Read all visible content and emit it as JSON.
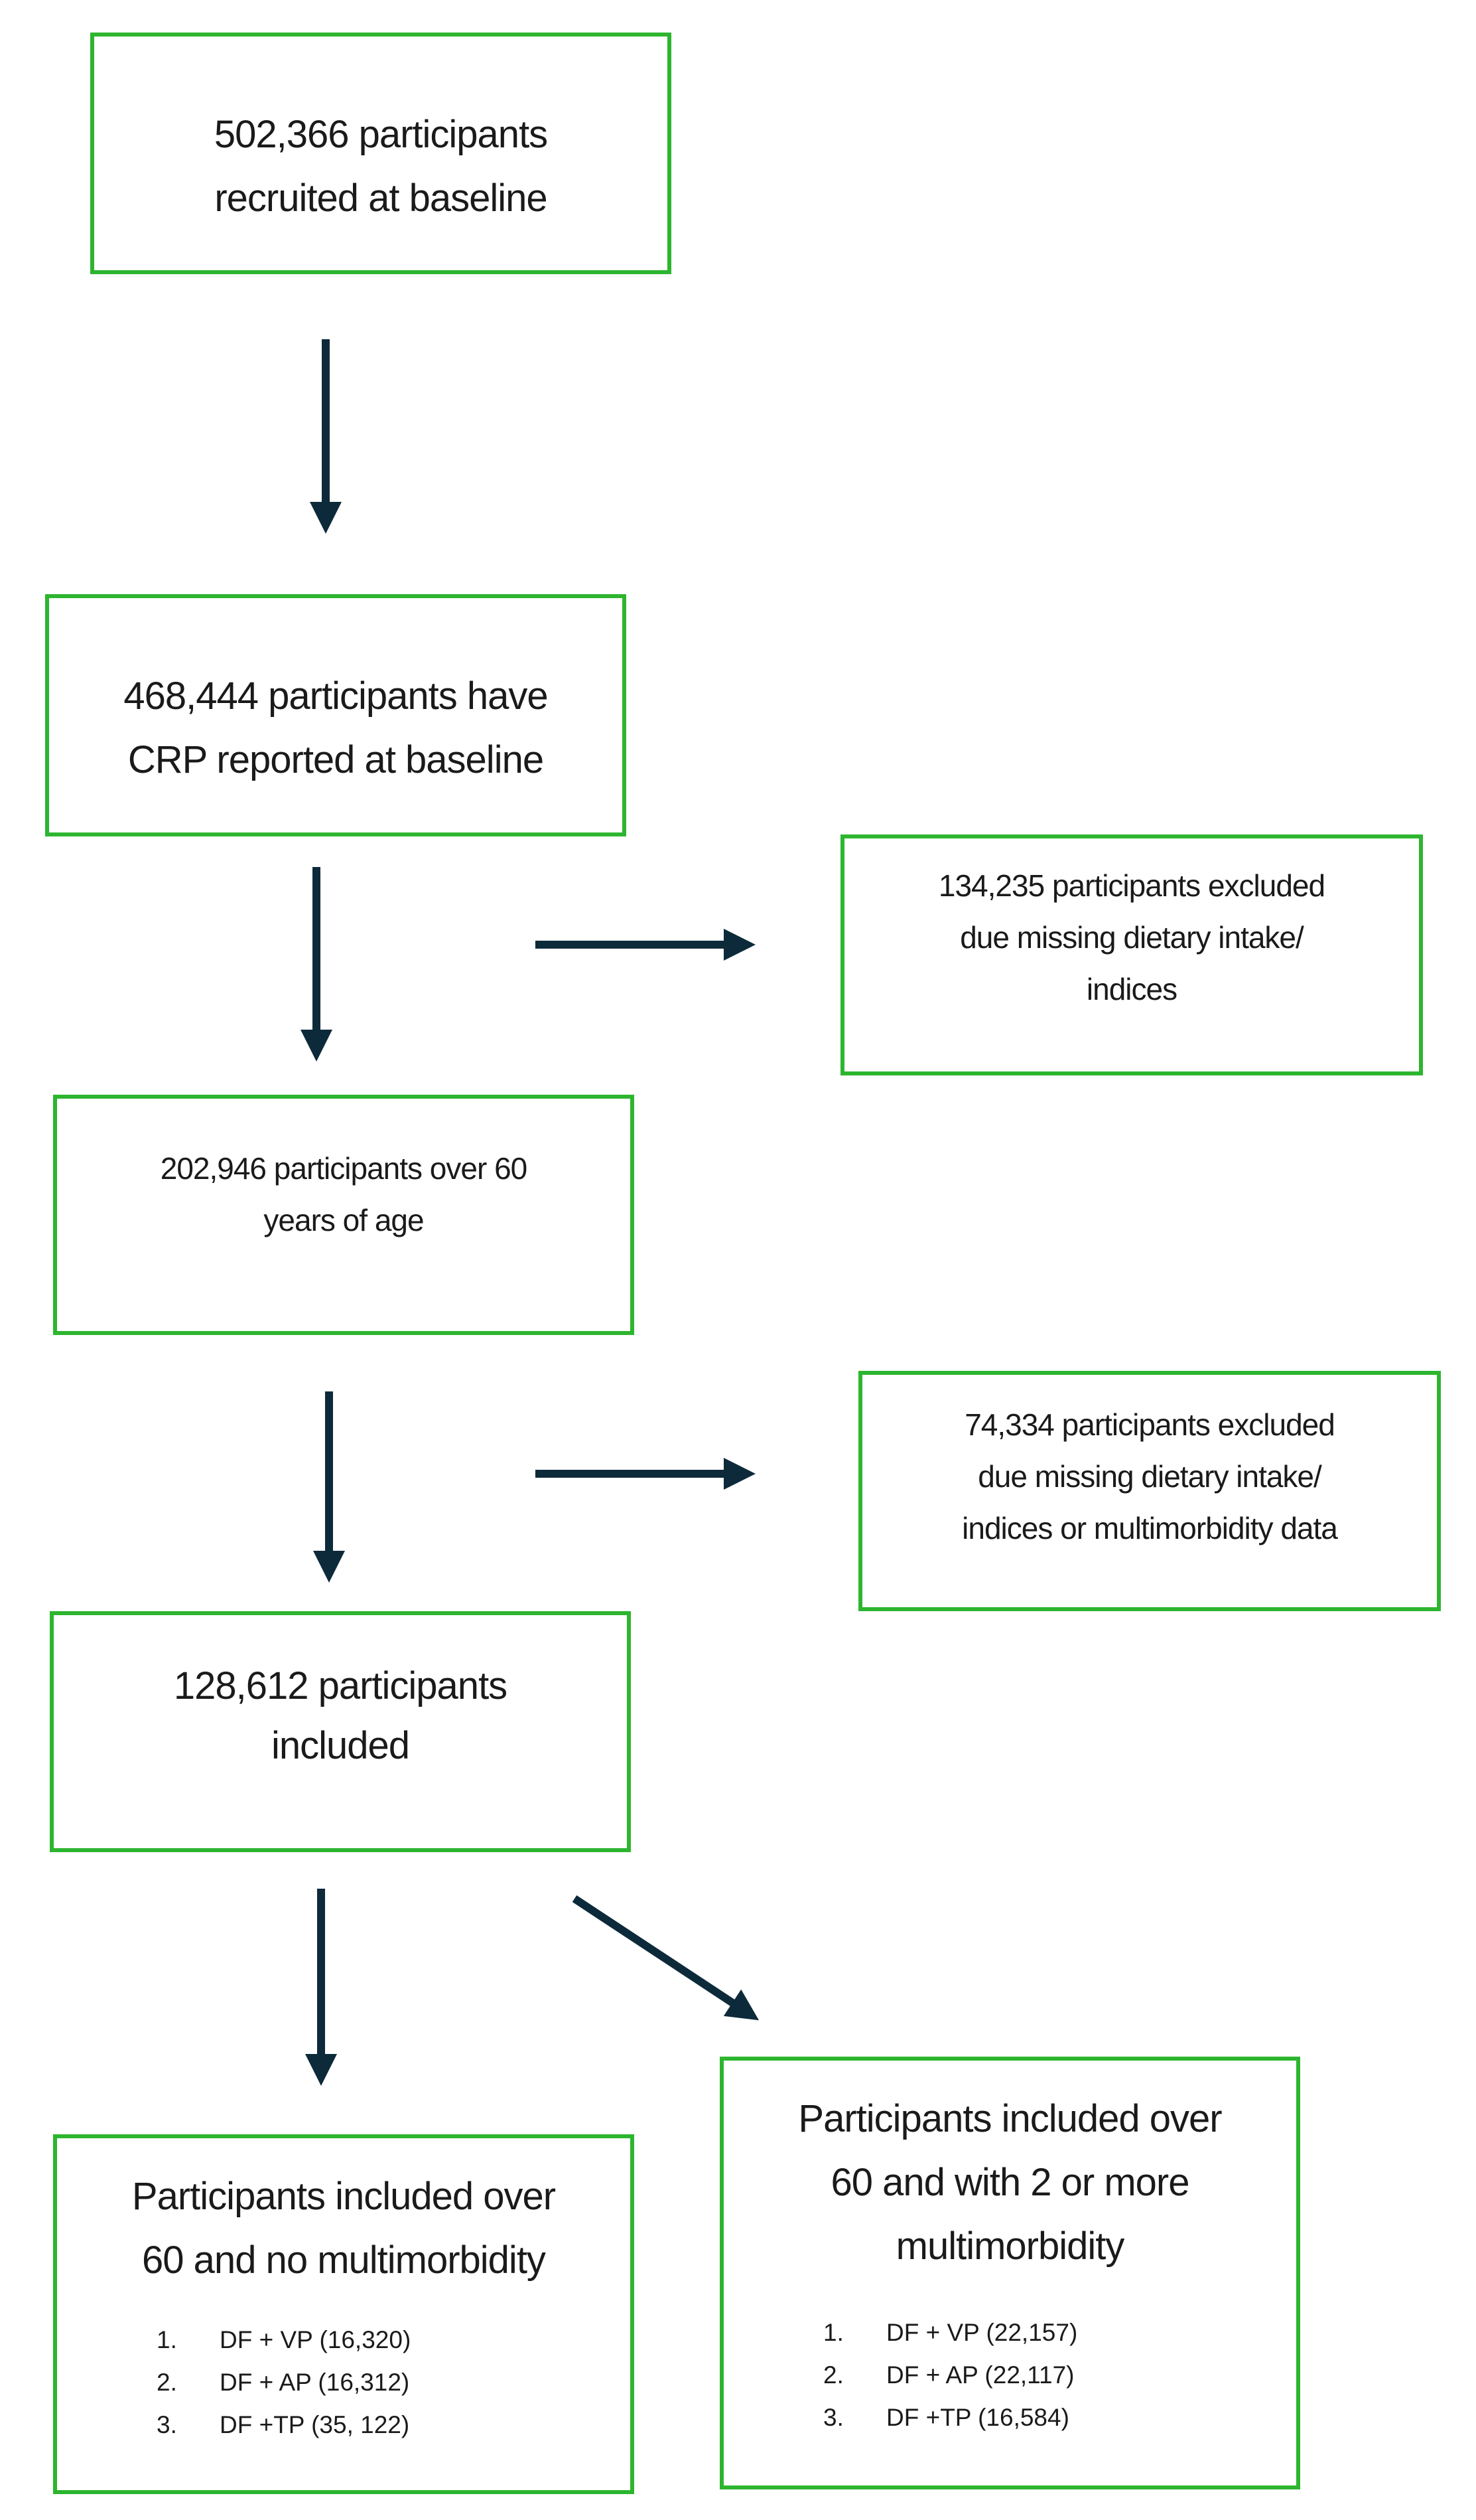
{
  "colors": {
    "box_border": "#2db52f",
    "arrow": "#0d2a3a"
  },
  "boxes": {
    "recruited": [
      "502,366 participants",
      "recruited at baseline"
    ],
    "crp": [
      "468,444 participants have",
      "CRP reported at baseline"
    ],
    "excluded1": [
      "134,235 participants excluded",
      "due missing dietary intake/",
      "indices"
    ],
    "over60": [
      "202,946 participants over 60",
      "years of age"
    ],
    "excluded2": [
      "74,334 participants excluded",
      "due missing dietary intake/",
      "indices or multimorbidity data"
    ],
    "included": [
      "128,612 participants",
      "included"
    ],
    "no_multimorbidity": {
      "title": [
        "Participants included over",
        "60 and no multimorbidity"
      ],
      "items": [
        {
          "num": "1.",
          "text": "DF + VP (16,320)"
        },
        {
          "num": "2.",
          "text": "DF + AP (16,312)"
        },
        {
          "num": "3.",
          "text": "DF +TP (35, 122)"
        }
      ]
    },
    "multimorbidity": {
      "title": [
        "Participants included over",
        "60 and with 2 or more",
        "multimorbidity"
      ],
      "items": [
        {
          "num": "1.",
          "text": "DF + VP (22,157)"
        },
        {
          "num": "2.",
          "text": "DF + AP (22,117)"
        },
        {
          "num": "3.",
          "text": "DF +TP (16,584)"
        }
      ]
    }
  }
}
